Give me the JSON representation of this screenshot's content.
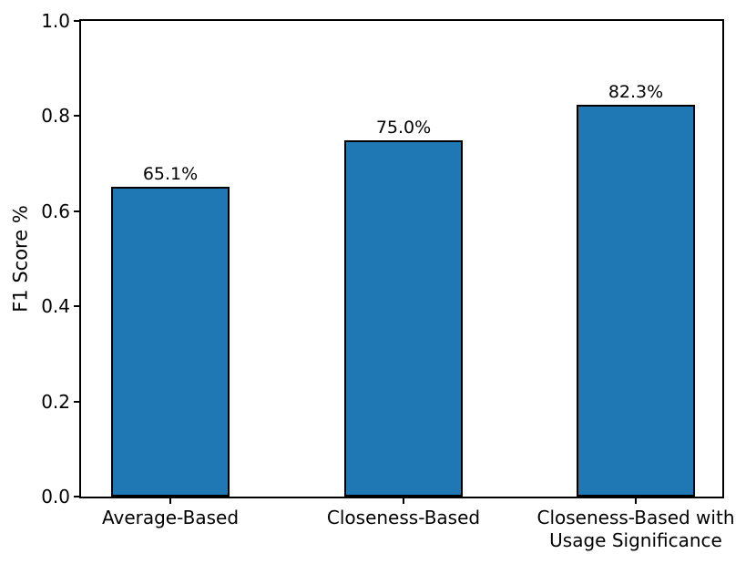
{
  "chart_data": {
    "type": "bar",
    "title": "",
    "xlabel": "",
    "ylabel": "F1 Score %",
    "categories": [
      "Average-Based",
      "Closeness-Based",
      "Closeness-Based with\nUsage Significance"
    ],
    "values": [
      0.651,
      0.75,
      0.823
    ],
    "value_labels": [
      "65.1%",
      "75.0%",
      "82.3%"
    ],
    "ylim": [
      0.0,
      1.0
    ],
    "yticks": [
      "0.0",
      "0.2",
      "0.4",
      "0.6",
      "0.8",
      "1.0"
    ],
    "grid": false,
    "legend": "none",
    "bar_color": "#1f77b4",
    "bar_edge_color": "#000000",
    "text_color": "#000000",
    "background_color": "#ffffff"
  }
}
